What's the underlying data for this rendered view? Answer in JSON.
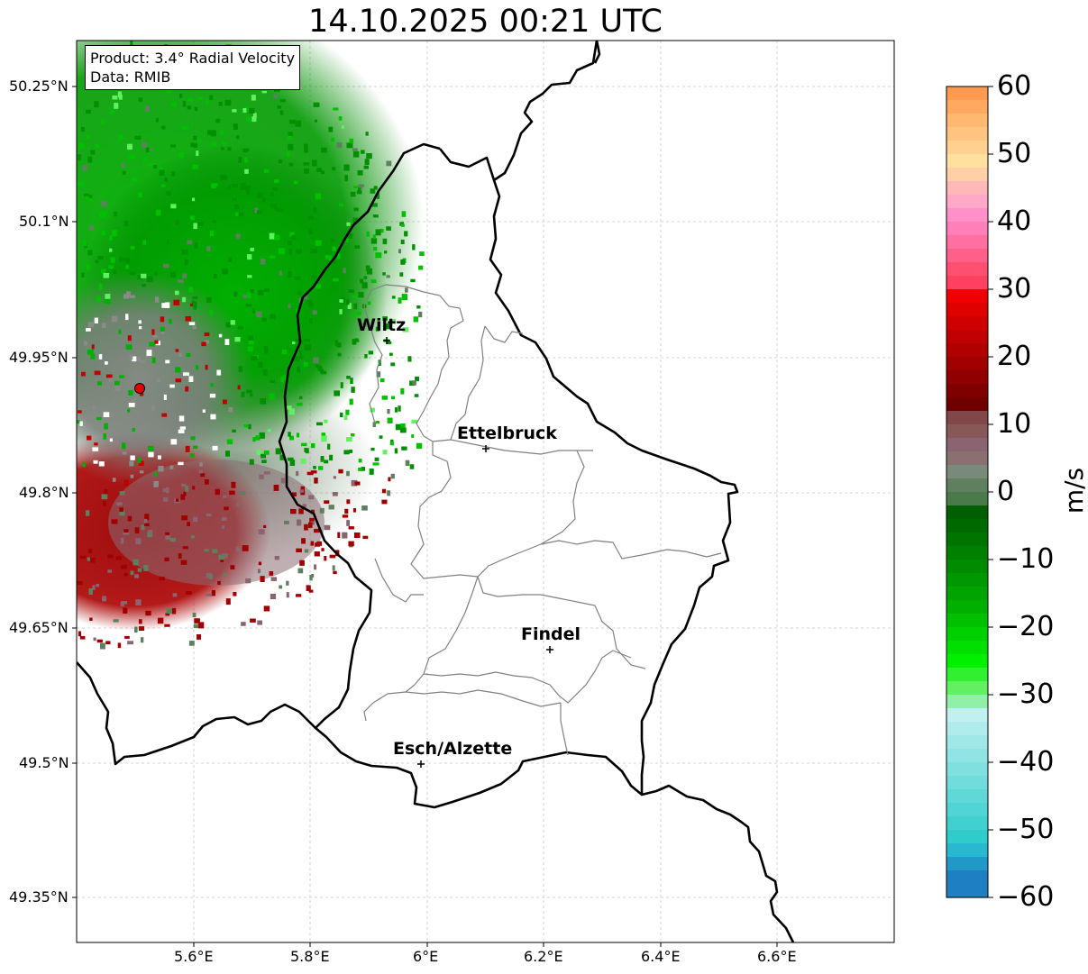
{
  "title": "14.10.2025 00:21 UTC",
  "info": {
    "product": "Product: 3.4° Radial Velocity",
    "data": "Data: RMIB"
  },
  "axes": {
    "lat_labels": [
      "50.25°N",
      "50.1°N",
      "49.95°N",
      "49.8°N",
      "49.65°N",
      "49.5°N",
      "49.35°N"
    ],
    "lon_labels": [
      "5.6°E",
      "5.8°E",
      "6°E",
      "6.2°E",
      "6.4°E",
      "6.6°E"
    ]
  },
  "cities": [
    {
      "name": "Wiltz"
    },
    {
      "name": "Ettelbruck"
    },
    {
      "name": "Findel"
    },
    {
      "name": "Esch/Alzette"
    }
  ],
  "colorbar": {
    "label": "m/s",
    "min": -60,
    "max": 60,
    "ticks": [
      "60",
      "50",
      "40",
      "30",
      "20",
      "10",
      "0",
      "−10",
      "−20",
      "−30",
      "−40",
      "−50",
      "−60"
    ]
  },
  "colors": {
    "border": "#000000",
    "canton_lines": "#808080",
    "radar_site": "#e00000"
  }
}
